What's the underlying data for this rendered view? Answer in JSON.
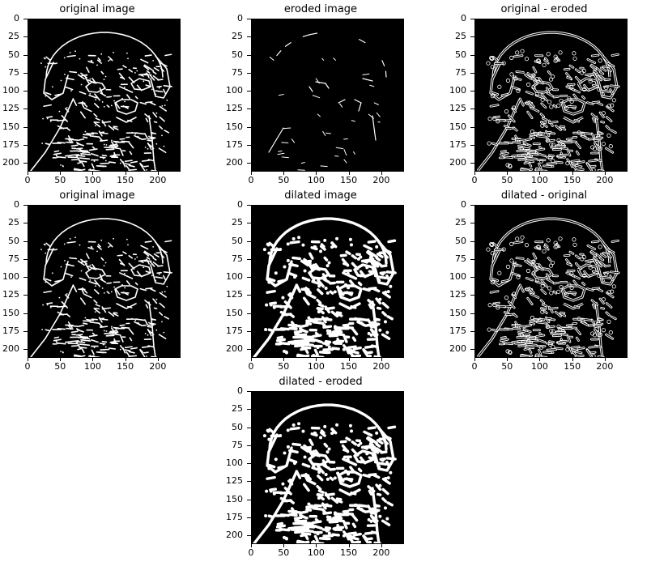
{
  "chart_data": [
    {
      "type": "image",
      "title": "original image",
      "variant": "edges",
      "xticks": [
        "0",
        "50",
        "100",
        "150",
        "200"
      ],
      "yticks": [
        "0",
        "25",
        "50",
        "75",
        "100",
        "125",
        "150",
        "175",
        "200"
      ],
      "xlim": [
        0,
        235
      ],
      "ylim": [
        212,
        0
      ],
      "colors": {
        "background": "#000000",
        "foreground": "#ffffff"
      }
    },
    {
      "type": "image",
      "title": "eroded image",
      "variant": "eroded",
      "xticks": [
        "0",
        "50",
        "100",
        "150",
        "200"
      ],
      "yticks": [
        "0",
        "25",
        "50",
        "75",
        "100",
        "125",
        "150",
        "175",
        "200"
      ],
      "xlim": [
        0,
        235
      ],
      "ylim": [
        212,
        0
      ],
      "colors": {
        "background": "#000000",
        "foreground": "#ffffff"
      }
    },
    {
      "type": "image",
      "title": "original - eroded",
      "variant": "orig_minus_eroded",
      "xticks": [
        "0",
        "50",
        "100",
        "150",
        "200"
      ],
      "yticks": [
        "0",
        "25",
        "50",
        "75",
        "100",
        "125",
        "150",
        "175",
        "200"
      ],
      "xlim": [
        0,
        235
      ],
      "ylim": [
        212,
        0
      ],
      "colors": {
        "background": "#000000",
        "foreground": "#ffffff"
      }
    },
    {
      "type": "image",
      "title": "original image",
      "variant": "edges",
      "xticks": [
        "0",
        "50",
        "100",
        "150",
        "200"
      ],
      "yticks": [
        "0",
        "25",
        "50",
        "75",
        "100",
        "125",
        "150",
        "175",
        "200"
      ],
      "xlim": [
        0,
        235
      ],
      "ylim": [
        212,
        0
      ],
      "colors": {
        "background": "#000000",
        "foreground": "#ffffff"
      }
    },
    {
      "type": "image",
      "title": "dilated image",
      "variant": "dilated",
      "xticks": [
        "0",
        "50",
        "100",
        "150",
        "200"
      ],
      "yticks": [
        "0",
        "25",
        "50",
        "75",
        "100",
        "125",
        "150",
        "175",
        "200"
      ],
      "xlim": [
        0,
        235
      ],
      "ylim": [
        212,
        0
      ],
      "colors": {
        "background": "#000000",
        "foreground": "#ffffff"
      }
    },
    {
      "type": "image",
      "title": "dilated - original",
      "variant": "dilated_minus_orig",
      "xticks": [
        "0",
        "50",
        "100",
        "150",
        "200"
      ],
      "yticks": [
        "0",
        "25",
        "50",
        "75",
        "100",
        "125",
        "150",
        "175",
        "200"
      ],
      "xlim": [
        0,
        235
      ],
      "ylim": [
        212,
        0
      ],
      "colors": {
        "background": "#000000",
        "foreground": "#ffffff"
      }
    },
    {
      "type": "image",
      "title": "dilated - eroded",
      "variant": "dilated_minus_eroded",
      "xticks": [
        "0",
        "50",
        "100",
        "150",
        "200"
      ],
      "yticks": [
        "0",
        "25",
        "50",
        "75",
        "100",
        "125",
        "150",
        "175",
        "200"
      ],
      "xlim": [
        0,
        235
      ],
      "ylim": [
        212,
        0
      ],
      "colors": {
        "background": "#000000",
        "foreground": "#ffffff"
      }
    }
  ]
}
